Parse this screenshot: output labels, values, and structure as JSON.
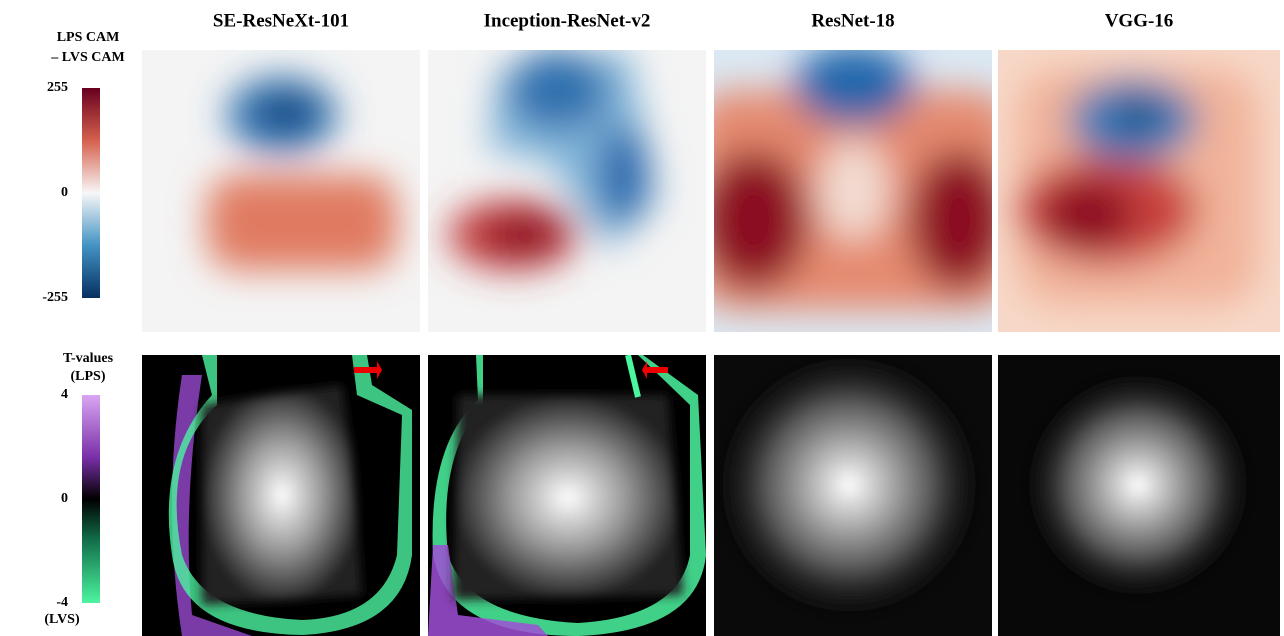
{
  "columns": [
    "SE-ResNeXt-101",
    "Inception-ResNet-v2",
    "ResNet-18",
    "VGG-16"
  ],
  "cam_legend": {
    "title": [
      "LPS CAM",
      "– LVS CAM"
    ],
    "ticks": [
      255,
      0,
      -255
    ]
  },
  "t_legend": {
    "title": [
      "T-values",
      "(LPS)"
    ],
    "ticks": [
      4,
      0,
      -4
    ],
    "bottom_label": "(LVS)"
  }
}
